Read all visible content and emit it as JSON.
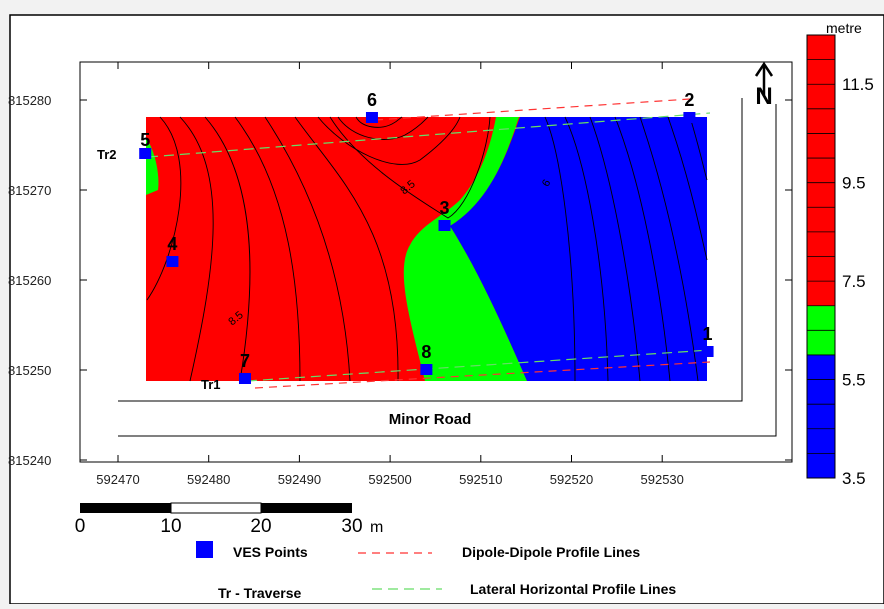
{
  "legend_unit": "metre",
  "legend_ticks": [
    "11.5",
    "9.5",
    "7.5",
    "5.5",
    "3.5"
  ],
  "x_ticks": [
    "592470",
    "592480",
    "592490",
    "592500",
    "592510",
    "592520",
    "592530"
  ],
  "y_ticks": [
    "815280",
    "815270",
    "815260",
    "815250",
    "815240"
  ],
  "contour_labels": [
    "8.5",
    "8.5",
    "6"
  ],
  "ves_points": [
    {
      "id": "1"
    },
    {
      "id": "2"
    },
    {
      "id": "3"
    },
    {
      "id": "4"
    },
    {
      "id": "5"
    },
    {
      "id": "6"
    },
    {
      "id": "7"
    },
    {
      "id": "8"
    }
  ],
  "traverses": [
    "Tr1",
    "Tr2"
  ],
  "road_label": "Minor Road",
  "north_label": "N",
  "scale": {
    "ticks": [
      "0",
      "10",
      "20",
      "30"
    ],
    "unit": "m"
  },
  "key": {
    "ves": "VES Points",
    "dipole": "Dipole-Dipole Profile Lines",
    "traverse": "Tr - Traverse",
    "lateral": "Lateral Horizontal Profile Lines"
  },
  "colors": {
    "high": "#ff0000",
    "mid": "#00ff00",
    "low": "#0000ff",
    "dipole_line": "#ff3333",
    "lateral_line": "#66dd66"
  },
  "chart_data": {
    "type": "heatmap",
    "x_range": [
      592465,
      592541
    ],
    "y_range": [
      815240,
      815287
    ],
    "ves_coords": [
      {
        "id": "1",
        "x": 592535,
        "y": 815252
      },
      {
        "id": "2",
        "x": 592533,
        "y": 815278
      },
      {
        "id": "3",
        "x": 592506,
        "y": 815266
      },
      {
        "id": "4",
        "x": 592476,
        "y": 815262
      },
      {
        "id": "5",
        "x": 592473,
        "y": 815274
      },
      {
        "id": "6",
        "x": 592498,
        "y": 815278
      },
      {
        "id": "7",
        "x": 592484,
        "y": 815249
      },
      {
        "id": "8",
        "x": 592504,
        "y": 815250
      }
    ]
  }
}
